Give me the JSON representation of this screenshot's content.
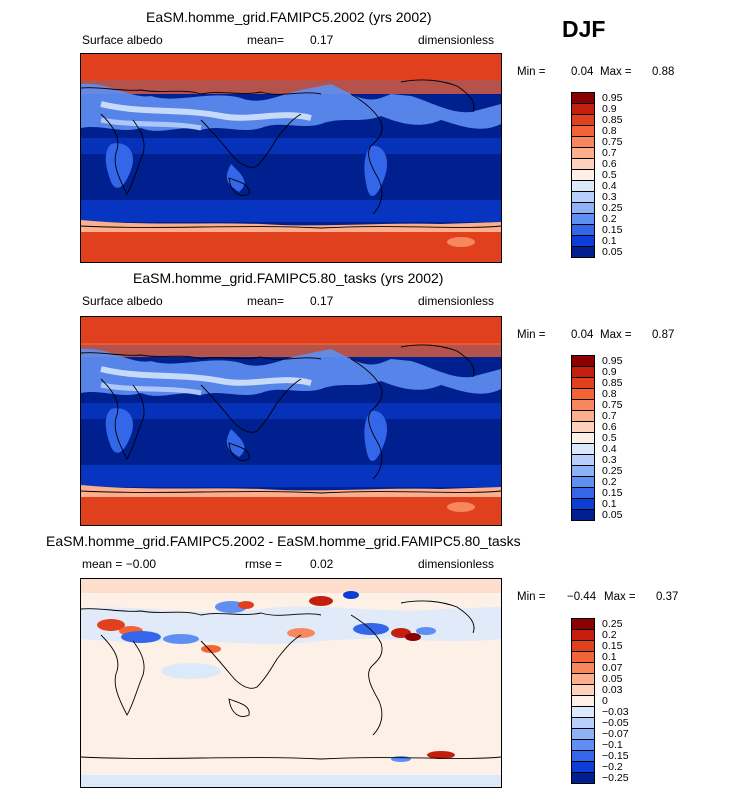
{
  "season": "DJF",
  "panels": [
    {
      "title": "EaSM.homme_grid.FAMIPC5.2002 (yrs 2002)",
      "left_label": "Surface albedo",
      "mid_label": "mean=",
      "mid_value": "0.17",
      "right_label": "dimensionless",
      "min_label": "Min =",
      "min_value": "0.04",
      "max_label": "Max =",
      "max_value": "0.88"
    },
    {
      "title": "EaSM.homme_grid.FAMIPC5.80_tasks (yrs 2002)",
      "left_label": "Surface albedo",
      "mid_label": "mean=",
      "mid_value": "0.17",
      "right_label": "dimensionless",
      "min_label": "Min =",
      "min_value": "0.04",
      "max_label": "Max =",
      "max_value": "0.87"
    },
    {
      "title": "EaSM.homme_grid.FAMIPC5.2002 - EaSM.homme_grid.FAMIPC5.80_tasks",
      "left_label": "mean = −0.00",
      "mid_label": "rmse =",
      "mid_value": "0.02",
      "right_label": "dimensionless",
      "min_label": "Min =",
      "min_value": "−0.44",
      "max_label": "Max =",
      "max_value": "0.37"
    }
  ],
  "chart_data": [
    {
      "type": "heatmap",
      "title": "EaSM.homme_grid.FAMIPC5.2002 (yrs 2002)",
      "variable": "Surface albedo",
      "units": "dimensionless",
      "mean": 0.17,
      "min": 0.04,
      "max": 0.88,
      "colorbar_levels": [
        "0.95",
        "0.9",
        "0.85",
        "0.8",
        "0.75",
        "0.7",
        "0.6",
        "0.5",
        "0.4",
        "0.3",
        "0.25",
        "0.2",
        "0.15",
        "0.1",
        "0.05"
      ],
      "colorbar_colors": [
        "#8b0000",
        "#c41e0f",
        "#e0401d",
        "#f26336",
        "#f7885d",
        "#fbaf8d",
        "#fdd1bb",
        "#fdf0e6",
        "#dbe9fb",
        "#b7cffa",
        "#8eb2f7",
        "#5f8ff2",
        "#3366e8",
        "#0a3ed6",
        "#00208f"
      ]
    },
    {
      "type": "heatmap",
      "title": "EaSM.homme_grid.FAMIPC5.80_tasks (yrs 2002)",
      "variable": "Surface albedo",
      "units": "dimensionless",
      "mean": 0.17,
      "min": 0.04,
      "max": 0.87,
      "colorbar_levels": [
        "0.95",
        "0.9",
        "0.85",
        "0.8",
        "0.75",
        "0.7",
        "0.6",
        "0.5",
        "0.4",
        "0.3",
        "0.25",
        "0.2",
        "0.15",
        "0.1",
        "0.05"
      ],
      "colorbar_colors": [
        "#8b0000",
        "#c41e0f",
        "#e0401d",
        "#f26336",
        "#f7885d",
        "#fbaf8d",
        "#fdd1bb",
        "#fdf0e6",
        "#dbe9fb",
        "#b7cffa",
        "#8eb2f7",
        "#5f8ff2",
        "#3366e8",
        "#0a3ed6",
        "#00208f"
      ]
    },
    {
      "type": "heatmap",
      "title": "EaSM.homme_grid.FAMIPC5.2002 - EaSM.homme_grid.FAMIPC5.80_tasks",
      "units": "dimensionless",
      "mean": -0.0,
      "rmse": 0.02,
      "min": -0.44,
      "max": 0.37,
      "colorbar_levels": [
        "0.25",
        "0.2",
        "0.15",
        "0.1",
        "0.07",
        "0.05",
        "0.03",
        "0",
        "−0.03",
        "−0.05",
        "−0.07",
        "−0.1",
        "−0.15",
        "−0.2",
        "−0.25"
      ],
      "colorbar_colors": [
        "#8b0000",
        "#c41e0f",
        "#e0401d",
        "#f26336",
        "#f7885d",
        "#fbaf8d",
        "#fdd1bb",
        "#fdf0e6",
        "#dbe9fb",
        "#b7cffa",
        "#8eb2f7",
        "#5f8ff2",
        "#3366e8",
        "#0a3ed6",
        "#00208f"
      ]
    }
  ]
}
